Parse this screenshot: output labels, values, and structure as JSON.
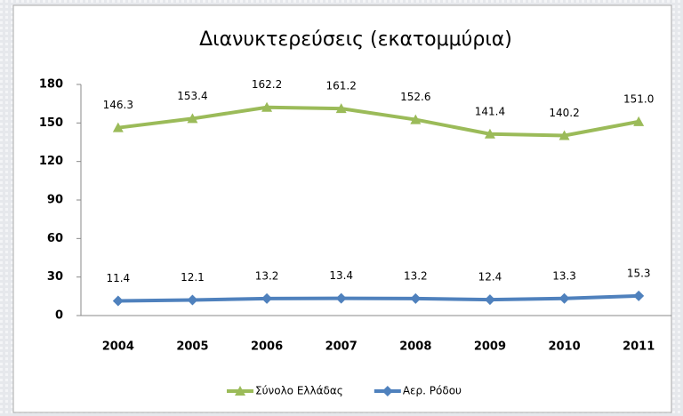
{
  "chart_data": {
    "type": "line",
    "title": "Διανυκτερεύσεις (εκατομμύρια)",
    "categories": [
      "2004",
      "2005",
      "2006",
      "2007",
      "2008",
      "2009",
      "2010",
      "2011"
    ],
    "series": [
      {
        "name": "Σύνολο Ελλάδας",
        "color": "#9bbb59",
        "marker": "triangle",
        "values": [
          146.3,
          153.4,
          162.2,
          161.2,
          152.6,
          141.4,
          140.2,
          151.0
        ],
        "value_labels": [
          "146.3",
          "153.4",
          "162.2",
          "161.2",
          "152.6",
          "141.4",
          "140.2",
          "151.0"
        ]
      },
      {
        "name": "Αερ. Ρόδου",
        "color": "#4f81bd",
        "marker": "diamond",
        "values": [
          11.4,
          12.1,
          13.2,
          13.4,
          13.2,
          12.4,
          13.3,
          15.3
        ],
        "value_labels": [
          "11.4",
          "12.1",
          "13.2",
          "13.4",
          "13.2",
          "12.4",
          "13.3",
          "15.3"
        ]
      }
    ],
    "ylim": [
      0,
      180
    ],
    "yticks": [
      0,
      30,
      60,
      90,
      120,
      150,
      180
    ],
    "legend": "bottom"
  }
}
